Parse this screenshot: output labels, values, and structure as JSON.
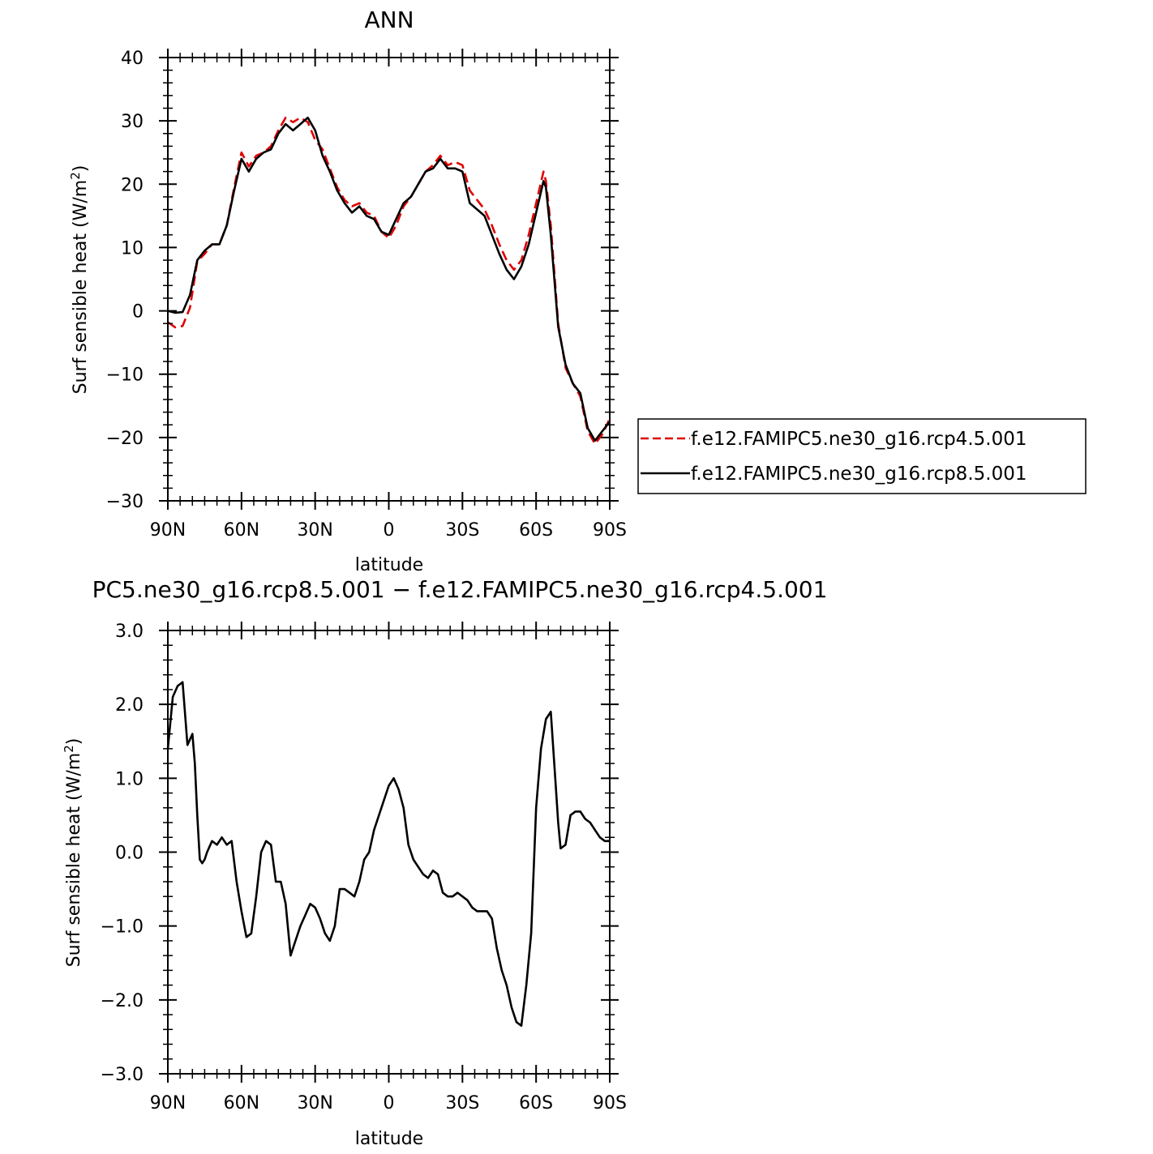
{
  "chart_data": [
    {
      "type": "line",
      "title": "ANN",
      "xlabel": "latitude",
      "ylabel_main": "Surf sensible heat (W/m",
      "ylabel_sup": "2",
      "ylabel_close": ")",
      "xlim": [
        -90,
        90
      ],
      "ylim": [
        -30,
        40
      ],
      "xticks": [
        {
          "value": -90,
          "label": "90N"
        },
        {
          "value": -60,
          "label": "60N"
        },
        {
          "value": -30,
          "label": "30N"
        },
        {
          "value": 0,
          "label": "0"
        },
        {
          "value": 30,
          "label": "30S"
        },
        {
          "value": 60,
          "label": "60S"
        },
        {
          "value": 90,
          "label": "90S"
        }
      ],
      "yticks": [
        {
          "value": 40,
          "label": "40"
        },
        {
          "value": 30,
          "label": "30"
        },
        {
          "value": 20,
          "label": "20"
        },
        {
          "value": 10,
          "label": "10"
        },
        {
          "value": 0,
          "label": "0"
        },
        {
          "value": -10,
          "label": "−10"
        },
        {
          "value": -20,
          "label": "−20"
        },
        {
          "value": -30,
          "label": "−30"
        }
      ],
      "legend_position": "right",
      "series": [
        {
          "name": "f.e12.FAMIPC5.ne30_g16.rcp4.5.001",
          "color": "#e00000",
          "dash": "dashed",
          "x": [
            -90,
            -87,
            -84,
            -81,
            -78,
            -75,
            -72,
            -69,
            -66,
            -63,
            -60,
            -57,
            -54,
            -51,
            -48,
            -45,
            -42,
            -39,
            -36,
            -33,
            -30,
            -27,
            -24,
            -21,
            -18,
            -15,
            -12,
            -9,
            -6,
            -3,
            0,
            3,
            6,
            9,
            12,
            15,
            18,
            21,
            24,
            27,
            30,
            33,
            36,
            39,
            42,
            45,
            48,
            51,
            54,
            57,
            60,
            63,
            64,
            66,
            69,
            72,
            75,
            78,
            81,
            84,
            87,
            90
          ],
          "y": [
            -1.8,
            -2.6,
            -2.4,
            0.5,
            7.8,
            9.0,
            10.5,
            10.5,
            13.5,
            19.5,
            25.0,
            22.8,
            24.5,
            25.0,
            26.0,
            28.5,
            30.5,
            29.8,
            30.5,
            29.8,
            27.0,
            25.5,
            22.5,
            19.5,
            17.5,
            16.5,
            17.0,
            15.5,
            15.0,
            12.5,
            11.5,
            13.5,
            16.5,
            18.0,
            20.0,
            22.0,
            23.0,
            24.5,
            23.0,
            23.5,
            23.0,
            19.0,
            17.5,
            16.0,
            13.5,
            10.5,
            8.0,
            6.5,
            8.0,
            12.0,
            17.0,
            22.0,
            20.5,
            13.5,
            -2.0,
            -9.0,
            -11.5,
            -13.5,
            -19.0,
            -21.0,
            -19.5,
            -17.0
          ]
        },
        {
          "name": "f.e12.FAMIPC5.ne30_g16.rcp8.5.001",
          "color": "#000000",
          "dash": "solid",
          "x": [
            -90,
            -87,
            -84,
            -81,
            -78,
            -75,
            -72,
            -69,
            -66,
            -63,
            -60,
            -57,
            -54,
            -51,
            -48,
            -45,
            -42,
            -39,
            -36,
            -33,
            -30,
            -27,
            -24,
            -21,
            -18,
            -15,
            -12,
            -9,
            -6,
            -3,
            0,
            3,
            6,
            9,
            12,
            15,
            18,
            21,
            24,
            27,
            30,
            33,
            36,
            39,
            42,
            45,
            48,
            51,
            54,
            57,
            60,
            63,
            64,
            66,
            69,
            72,
            75,
            78,
            81,
            84,
            87,
            90
          ],
          "y": [
            0.0,
            -0.3,
            -0.2,
            2.5,
            8.0,
            9.5,
            10.5,
            10.5,
            13.5,
            19.0,
            24.0,
            22.0,
            24.0,
            25.0,
            25.5,
            28.0,
            29.5,
            28.5,
            29.5,
            30.5,
            28.5,
            24.5,
            22.0,
            19.0,
            17.0,
            15.5,
            16.5,
            15.0,
            14.5,
            12.5,
            12.0,
            14.5,
            17.0,
            18.0,
            20.0,
            22.0,
            22.5,
            24.0,
            22.5,
            22.5,
            22.0,
            17.0,
            16.0,
            15.0,
            12.0,
            9.0,
            6.5,
            5.0,
            7.0,
            10.5,
            15.5,
            20.5,
            19.5,
            12.0,
            -2.5,
            -8.5,
            -11.5,
            -13.0,
            -18.5,
            -20.5,
            -19.0,
            -17.5
          ]
        }
      ]
    },
    {
      "type": "line",
      "title": "PC5.ne30_g16.rcp8.5.001 − f.e12.FAMIPC5.ne30_g16.rcp4.5.001",
      "xlabel": "latitude",
      "ylabel_main": "Surf sensible heat (W/m",
      "ylabel_sup": "2",
      "ylabel_close": ")",
      "xlim": [
        -90,
        90
      ],
      "ylim": [
        -3,
        3
      ],
      "xticks": [
        {
          "value": -90,
          "label": "90N"
        },
        {
          "value": -60,
          "label": "60N"
        },
        {
          "value": -30,
          "label": "30N"
        },
        {
          "value": 0,
          "label": "0"
        },
        {
          "value": 30,
          "label": "30S"
        },
        {
          "value": 60,
          "label": "60S"
        },
        {
          "value": 90,
          "label": "90S"
        }
      ],
      "yticks": [
        {
          "value": 3,
          "label": "3.0"
        },
        {
          "value": 2,
          "label": "2.0"
        },
        {
          "value": 1,
          "label": "1.0"
        },
        {
          "value": 0,
          "label": "0.0"
        },
        {
          "value": -1,
          "label": "−1.0"
        },
        {
          "value": -2,
          "label": "−2.0"
        },
        {
          "value": -3,
          "label": "−3.0"
        }
      ],
      "series": [
        {
          "color": "#000000",
          "dash": "solid",
          "x": [
            -90,
            -88,
            -86,
            -84,
            -82,
            -80,
            -79,
            -78,
            -77,
            -76,
            -75,
            -74,
            -72,
            -70,
            -68,
            -66,
            -64,
            -62,
            -60,
            -58,
            -56,
            -54,
            -52,
            -50,
            -48,
            -46,
            -44,
            -42,
            -40,
            -38,
            -36,
            -34,
            -32,
            -30,
            -28,
            -26,
            -24,
            -22,
            -20,
            -18,
            -16,
            -14,
            -12,
            -10,
            -8,
            -6,
            -4,
            -2,
            0,
            2,
            4,
            6,
            8,
            10,
            12,
            14,
            16,
            18,
            20,
            22,
            24,
            26,
            28,
            30,
            32,
            34,
            36,
            38,
            40,
            42,
            44,
            46,
            48,
            50,
            52,
            54,
            56,
            58,
            60,
            62,
            64,
            66,
            68,
            69,
            70,
            72,
            74,
            76,
            78,
            80,
            82,
            84,
            86,
            88,
            90
          ],
          "y": [
            1.4,
            2.1,
            2.25,
            2.3,
            1.45,
            1.6,
            1.2,
            0.5,
            -0.1,
            -0.15,
            -0.1,
            0.0,
            0.15,
            0.1,
            0.2,
            0.1,
            0.15,
            -0.4,
            -0.8,
            -1.15,
            -1.1,
            -0.6,
            0.0,
            0.15,
            0.1,
            -0.4,
            -0.4,
            -0.7,
            -1.4,
            -1.2,
            -1.0,
            -0.85,
            -0.7,
            -0.75,
            -0.9,
            -1.1,
            -1.2,
            -1.0,
            -0.5,
            -0.5,
            -0.55,
            -0.6,
            -0.4,
            -0.1,
            0.0,
            0.3,
            0.5,
            0.7,
            0.9,
            1.0,
            0.85,
            0.6,
            0.1,
            -0.1,
            -0.2,
            -0.3,
            -0.35,
            -0.25,
            -0.3,
            -0.55,
            -0.6,
            -0.6,
            -0.55,
            -0.6,
            -0.65,
            -0.75,
            -0.8,
            -0.8,
            -0.8,
            -0.9,
            -1.3,
            -1.6,
            -1.8,
            -2.1,
            -2.3,
            -2.35,
            -1.8,
            -1.1,
            0.6,
            1.4,
            1.8,
            1.9,
            0.9,
            0.4,
            0.05,
            0.1,
            0.5,
            0.55,
            0.55,
            0.45,
            0.4,
            0.3,
            0.2,
            0.15,
            0.15
          ]
        }
      ]
    }
  ]
}
